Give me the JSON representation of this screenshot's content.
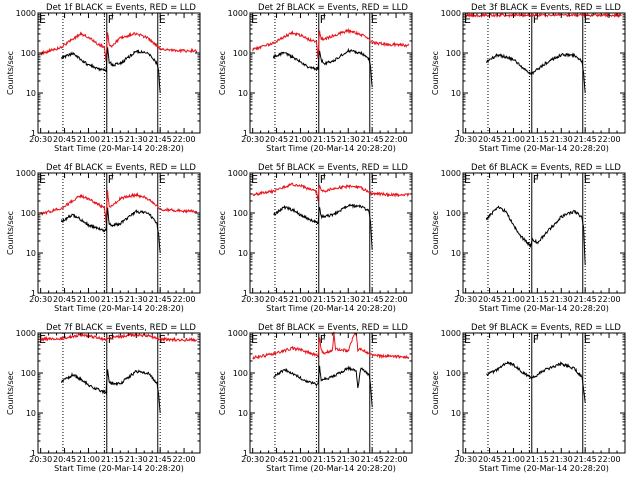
{
  "colors": {
    "events": "#000000",
    "lld": "#e8141b",
    "axes": "#000000",
    "background": "#ffffff"
  },
  "chart_data": [
    {
      "type": "line",
      "title": "Det 1f BLACK = Events, RED = LLD",
      "xlabel": "Start Time (20-Mar-14 20:28:20)",
      "ylabel": "Counts/sec",
      "yscale": "log",
      "ylim": [
        1,
        1000
      ],
      "xlim": [
        "20:28:20",
        "22:10:00"
      ],
      "x_ticks": [
        "20:30",
        "20:45",
        "21:00",
        "21:15",
        "21:30",
        "21:45",
        "22:00"
      ],
      "y_ticks": [
        "1",
        "10",
        "100",
        "1000"
      ],
      "markers": [
        {
          "label": "E",
          "time": "20:28:20"
        },
        {
          "label": "F",
          "time": "21:11:30"
        },
        {
          "label": "E",
          "time": "21:43:30"
        }
      ],
      "dotted_lines": [
        "20:44:00",
        "21:10:00",
        "21:45:00"
      ],
      "series": [
        {
          "color": "#e8141b",
          "x": [
            "20:30",
            "20:43",
            "20:55",
            "21:00",
            "21:05",
            "21:10",
            "21:11",
            "21:12",
            "21:13",
            "21:15",
            "21:20",
            "21:30",
            "21:38",
            "21:43",
            "21:45",
            "21:55",
            "22:08"
          ],
          "values": [
            95,
            140,
            300,
            250,
            175,
            140,
            60,
            350,
            150,
            150,
            240,
            310,
            230,
            150,
            125,
            115,
            112
          ]
        },
        {
          "color": "#000000",
          "x": [
            "20:43",
            "20:50",
            "20:55",
            "21:00",
            "21:05",
            "21:11",
            "21:12",
            "21:13",
            "21:15",
            "21:20",
            "21:30",
            "21:38",
            "21:43",
            "21:44",
            "21:45"
          ],
          "values": [
            75,
            100,
            70,
            50,
            42,
            36,
            130,
            60,
            50,
            55,
            110,
            95,
            55,
            35,
            10
          ]
        }
      ]
    },
    {
      "type": "line",
      "title": "Det 2f BLACK = Events, RED = LLD",
      "xlabel": "Start Time (20-Mar-14 20:28:20)",
      "ylabel": "Counts/sec",
      "yscale": "log",
      "ylim": [
        1,
        1000
      ],
      "xlim": [
        "20:28:20",
        "22:10:00"
      ],
      "x_ticks": [
        "20:30",
        "20:45",
        "21:00",
        "21:15",
        "21:30",
        "21:45",
        "22:00"
      ],
      "y_ticks": [
        "1",
        "10",
        "100",
        "1000"
      ],
      "markers": [
        {
          "label": "E",
          "time": "20:28:20"
        },
        {
          "label": "F",
          "time": "21:11:30"
        },
        {
          "label": "E",
          "time": "21:43:30"
        }
      ],
      "dotted_lines": [
        "20:44:00",
        "21:10:00",
        "21:45:00"
      ],
      "series": [
        {
          "color": "#e8141b",
          "x": [
            "20:30",
            "20:43",
            "20:55",
            "21:00",
            "21:05",
            "21:10",
            "21:11",
            "21:12",
            "21:13",
            "21:15",
            "21:20",
            "21:30",
            "21:38",
            "21:43",
            "21:45",
            "21:55",
            "22:08"
          ],
          "values": [
            120,
            180,
            320,
            280,
            220,
            190,
            75,
            350,
            230,
            220,
            270,
            360,
            290,
            220,
            180,
            165,
            155
          ]
        },
        {
          "color": "#000000",
          "x": [
            "20:43",
            "20:50",
            "20:55",
            "21:00",
            "21:05",
            "21:11",
            "21:12",
            "21:13",
            "21:15",
            "21:20",
            "21:30",
            "21:38",
            "21:43",
            "21:44",
            "21:45"
          ],
          "values": [
            80,
            105,
            80,
            60,
            45,
            40,
            120,
            65,
            55,
            60,
            115,
            100,
            70,
            45,
            14
          ]
        }
      ]
    },
    {
      "type": "line",
      "title": "Det 3f BLACK = Events, RED = LLD",
      "xlabel": "Start Time (20-Mar-14 20:28:20)",
      "ylabel": "Counts/sec",
      "yscale": "log",
      "ylim": [
        1,
        1000
      ],
      "xlim": [
        "20:28:20",
        "22:10:00"
      ],
      "x_ticks": [
        "20:30",
        "20:45",
        "21:00",
        "21:15",
        "21:30",
        "21:45",
        "22:00"
      ],
      "y_ticks": [
        "1",
        "10",
        "100",
        "1000"
      ],
      "markers": [
        {
          "label": "E",
          "time": "20:28:20"
        },
        {
          "label": "F",
          "time": "21:11:30"
        },
        {
          "label": "E",
          "time": "21:43:30"
        }
      ],
      "dotted_lines": [
        "20:44:00",
        "21:10:00",
        "21:45:00"
      ],
      "series": [
        {
          "color": "#e8141b",
          "x": [
            "20:30",
            "21:00",
            "21:30",
            "22:08"
          ],
          "values": [
            880,
            880,
            880,
            880
          ]
        },
        {
          "color": "#000000",
          "x": [
            "20:43",
            "20:50",
            "21:00",
            "21:05",
            "21:11",
            "21:20",
            "21:30",
            "21:38",
            "21:43",
            "21:44",
            "21:45"
          ],
          "values": [
            60,
            90,
            70,
            45,
            30,
            55,
            90,
            90,
            60,
            35,
            10
          ]
        }
      ]
    },
    {
      "type": "line",
      "title": "Det 4f BLACK = Events, RED = LLD",
      "xlabel": "Start Time (20-Mar-14 20:28:20)",
      "ylabel": "Counts/sec",
      "yscale": "log",
      "ylim": [
        1,
        1000
      ],
      "xlim": [
        "20:28:20",
        "22:10:00"
      ],
      "x_ticks": [
        "20:30",
        "20:45",
        "21:00",
        "21:15",
        "21:30",
        "21:45",
        "22:00"
      ],
      "y_ticks": [
        "1",
        "10",
        "100",
        "1000"
      ],
      "markers": [
        {
          "label": "E",
          "time": "20:28:20"
        },
        {
          "label": "F",
          "time": "21:11:30"
        },
        {
          "label": "E",
          "time": "21:43:30"
        }
      ],
      "dotted_lines": [
        "20:44:00",
        "21:10:00",
        "21:45:00"
      ],
      "series": [
        {
          "color": "#e8141b",
          "x": [
            "20:30",
            "20:43",
            "20:55",
            "21:00",
            "21:05",
            "21:10",
            "21:11",
            "21:12",
            "21:13",
            "21:15",
            "21:20",
            "21:30",
            "21:38",
            "21:43",
            "21:45",
            "21:55",
            "22:08"
          ],
          "values": [
            95,
            130,
            270,
            230,
            170,
            140,
            60,
            350,
            150,
            150,
            230,
            290,
            220,
            150,
            125,
            115,
            110
          ]
        },
        {
          "color": "#000000",
          "x": [
            "20:43",
            "20:50",
            "20:55",
            "21:00",
            "21:05",
            "21:11",
            "21:12",
            "21:13",
            "21:15",
            "21:20",
            "21:30",
            "21:38",
            "21:43",
            "21:44",
            "21:45"
          ],
          "values": [
            60,
            90,
            70,
            50,
            42,
            36,
            130,
            55,
            50,
            55,
            110,
            95,
            55,
            30,
            10
          ]
        }
      ]
    },
    {
      "type": "line",
      "title": "Det 5f BLACK = Events, RED = LLD",
      "xlabel": "Start Time (20-Mar-14 20:28:20)",
      "ylabel": "Counts/sec",
      "yscale": "log",
      "ylim": [
        1,
        1000
      ],
      "xlim": [
        "20:28:20",
        "22:10:00"
      ],
      "x_ticks": [
        "20:30",
        "20:45",
        "21:00",
        "21:15",
        "21:30",
        "21:45",
        "22:00"
      ],
      "y_ticks": [
        "1",
        "10",
        "100",
        "1000"
      ],
      "markers": [
        {
          "label": "E",
          "time": "20:28:20"
        },
        {
          "label": "F",
          "time": "21:11:30"
        },
        {
          "label": "E",
          "time": "21:43:30"
        }
      ],
      "dotted_lines": [
        "20:44:00",
        "21:10:00",
        "21:45:00"
      ],
      "series": [
        {
          "color": "#e8141b",
          "x": [
            "20:30",
            "20:43",
            "20:55",
            "21:00",
            "21:05",
            "21:10",
            "21:11",
            "21:12",
            "21:13",
            "21:15",
            "21:20",
            "21:30",
            "21:38",
            "21:43",
            "21:45",
            "21:55",
            "22:08"
          ],
          "values": [
            290,
            350,
            520,
            480,
            400,
            350,
            200,
            500,
            370,
            350,
            400,
            470,
            430,
            330,
            300,
            290,
            280
          ]
        },
        {
          "color": "#000000",
          "x": [
            "20:43",
            "20:50",
            "20:55",
            "21:00",
            "21:05",
            "21:11",
            "21:12",
            "21:13",
            "21:15",
            "21:20",
            "21:30",
            "21:38",
            "21:43",
            "21:44",
            "21:45"
          ],
          "values": [
            90,
            140,
            120,
            90,
            70,
            55,
            150,
            80,
            80,
            90,
            150,
            150,
            110,
            60,
            12
          ]
        }
      ]
    },
    {
      "type": "line",
      "title": "Det 6f BLACK = Events, RED = LLD",
      "xlabel": "Start Time (20-Mar-14 20:28:20)",
      "ylabel": "Counts/sec",
      "yscale": "log",
      "ylim": [
        1,
        1000
      ],
      "xlim": [
        "20:28:20",
        "22:10:00"
      ],
      "x_ticks": [
        "20:30",
        "20:45",
        "21:00",
        "21:15",
        "21:30",
        "21:45",
        "22:00"
      ],
      "y_ticks": [
        "1",
        "10",
        "100",
        "1000"
      ],
      "markers": [
        {
          "label": "E",
          "time": "20:28:20"
        },
        {
          "label": "F",
          "time": "21:11:30"
        },
        {
          "label": "E",
          "time": "21:43:30"
        }
      ],
      "dotted_lines": [
        "20:44:00",
        "21:10:00",
        "21:45:00"
      ],
      "series": [
        {
          "color": "#000000",
          "x": [
            "20:43",
            "20:50",
            "20:55",
            "21:00",
            "21:05",
            "21:11",
            "21:12",
            "21:15",
            "21:20",
            "21:30",
            "21:38",
            "21:43",
            "21:44",
            "21:45"
          ],
          "values": [
            70,
            140,
            110,
            50,
            25,
            15,
            22,
            18,
            30,
            80,
            110,
            80,
            45,
            5
          ]
        }
      ]
    },
    {
      "type": "line",
      "title": "Det 7f BLACK = Events, RED = LLD",
      "xlabel": "Start Time (20-Mar-14 20:28:20)",
      "ylabel": "Counts/sec",
      "yscale": "log",
      "ylim": [
        1,
        1000
      ],
      "xlim": [
        "20:28:20",
        "22:10:00"
      ],
      "x_ticks": [
        "20:30",
        "20:45",
        "21:00",
        "21:15",
        "21:30",
        "21:45",
        "22:00"
      ],
      "y_ticks": [
        "1",
        "10",
        "100",
        "1000"
      ],
      "markers": [
        {
          "label": "E",
          "time": "20:28:20"
        },
        {
          "label": "F",
          "time": "21:11:30"
        },
        {
          "label": "E",
          "time": "21:43:30"
        }
      ],
      "dotted_lines": [
        "20:44:00",
        "21:10:00",
        "21:45:00"
      ],
      "series": [
        {
          "color": "#e8141b",
          "x": [
            "20:30",
            "20:43",
            "20:55",
            "21:00",
            "21:05",
            "21:10",
            "21:15",
            "21:20",
            "21:30",
            "21:38",
            "21:43",
            "21:45",
            "21:55",
            "22:08"
          ],
          "values": [
            700,
            720,
            900,
            850,
            760,
            700,
            760,
            820,
            900,
            850,
            750,
            700,
            680,
            680
          ]
        },
        {
          "color": "#000000",
          "x": [
            "20:43",
            "20:50",
            "20:55",
            "21:00",
            "21:05",
            "21:11",
            "21:12",
            "21:13",
            "21:15",
            "21:20",
            "21:30",
            "21:38",
            "21:43",
            "21:44",
            "21:45"
          ],
          "values": [
            60,
            90,
            70,
            50,
            40,
            33,
            120,
            60,
            55,
            55,
            110,
            95,
            55,
            30,
            10
          ]
        }
      ]
    },
    {
      "type": "line",
      "title": "Det 8f BLACK = Events, RED = LLD",
      "xlabel": "Start Time (20-Mar-14 20:28:20)",
      "ylabel": "Counts/sec",
      "yscale": "log",
      "ylim": [
        1,
        1000
      ],
      "xlim": [
        "20:28:20",
        "22:10:00"
      ],
      "x_ticks": [
        "20:30",
        "20:45",
        "21:00",
        "21:15",
        "21:30",
        "21:45",
        "22:00"
      ],
      "y_ticks": [
        "1",
        "10",
        "100",
        "1000"
      ],
      "markers": [
        {
          "label": "E",
          "time": "20:28:20"
        },
        {
          "label": "F",
          "time": "21:11:30"
        },
        {
          "label": "E",
          "time": "21:43:30"
        }
      ],
      "dotted_lines": [
        "20:44:00",
        "21:10:00",
        "21:45:00"
      ],
      "series": [
        {
          "color": "#e8141b",
          "x": [
            "20:30",
            "20:43",
            "20:55",
            "21:00",
            "21:05",
            "21:10",
            "21:11",
            "21:12",
            "21:13",
            "21:15",
            "21:20",
            "21:21",
            "21:22",
            "21:30",
            "21:34",
            "21:35",
            "21:36",
            "21:38",
            "21:43",
            "21:45",
            "21:55",
            "22:08"
          ],
          "values": [
            240,
            300,
            420,
            380,
            320,
            280,
            240,
            800,
            360,
            320,
            350,
            1000,
            400,
            360,
            1000,
            1000,
            380,
            380,
            320,
            280,
            260,
            250
          ]
        },
        {
          "color": "#000000",
          "x": [
            "20:43",
            "20:50",
            "20:55",
            "21:00",
            "21:05",
            "21:11",
            "21:12",
            "21:13",
            "21:15",
            "21:20",
            "21:30",
            "21:35",
            "21:36",
            "21:38",
            "21:43",
            "21:44",
            "21:45"
          ],
          "values": [
            80,
            120,
            100,
            75,
            60,
            50,
            140,
            70,
            70,
            80,
            130,
            120,
            40,
            140,
            90,
            50,
            14
          ]
        }
      ]
    },
    {
      "type": "line",
      "title": "Det 9f BLACK = Events, RED = LLD",
      "xlabel": "Start Time (20-Mar-14 20:28:20)",
      "ylabel": "Counts/sec",
      "yscale": "log",
      "ylim": [
        1,
        1000
      ],
      "xlim": [
        "20:28:20",
        "22:10:00"
      ],
      "x_ticks": [
        "20:30",
        "20:45",
        "21:00",
        "21:15",
        "21:30",
        "21:45",
        "22:00"
      ],
      "y_ticks": [
        "1",
        "10",
        "100",
        "1000"
      ],
      "markers": [
        {
          "label": "E",
          "time": "20:28:20"
        },
        {
          "label": "F",
          "time": "21:11:30"
        },
        {
          "label": "E",
          "time": "21:43:30"
        }
      ],
      "dotted_lines": [
        "20:44:00",
        "21:10:00",
        "21:45:00"
      ],
      "series": [
        {
          "color": "#000000",
          "x": [
            "20:43",
            "20:50",
            "20:55",
            "21:00",
            "21:05",
            "21:11",
            "21:15",
            "21:20",
            "21:30",
            "21:38",
            "21:43",
            "21:44",
            "21:45"
          ],
          "values": [
            90,
            120,
            180,
            160,
            110,
            75,
            90,
            120,
            170,
            130,
            80,
            40,
            18
          ]
        }
      ]
    }
  ]
}
